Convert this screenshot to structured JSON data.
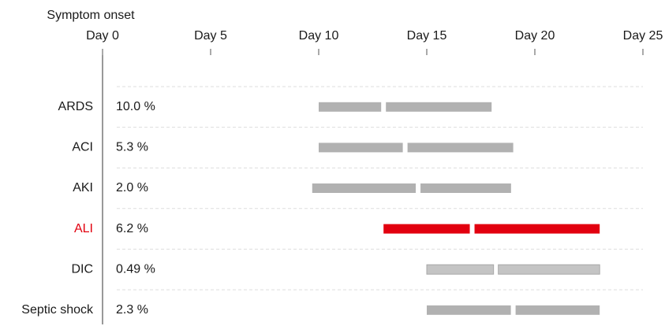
{
  "chart_data": {
    "type": "range",
    "axis_title": "Symptom onset",
    "xlim": [
      0,
      25
    ],
    "xticks": [
      {
        "value": 0,
        "label": "Day 0"
      },
      {
        "value": 5,
        "label": "Day 5"
      },
      {
        "value": 10,
        "label": "Day 10"
      },
      {
        "value": 15,
        "label": "Day 15"
      },
      {
        "value": 20,
        "label": "Day 20"
      },
      {
        "value": 25,
        "label": "Day 25"
      }
    ],
    "grid": true,
    "rows": [
      {
        "label": "ARDS",
        "percent": "10.0 %",
        "low": 10,
        "median": 13,
        "high": 18,
        "color": "#b1b1b1",
        "label_color": "#1a1a1a"
      },
      {
        "label": "ACI",
        "percent": "5.3 %",
        "low": 10,
        "median": 14,
        "high": 19,
        "color": "#b1b1b1",
        "label_color": "#1a1a1a"
      },
      {
        "label": "AKI",
        "percent": "2.0 %",
        "low": 9.7,
        "median": 14.6,
        "high": 18.9,
        "color": "#b1b1b1",
        "label_color": "#1a1a1a"
      },
      {
        "label": "ALI",
        "percent": "6.2 %",
        "low": 13,
        "median": 17.1,
        "high": 23,
        "color": "#e2000f",
        "label_color": "#e2000f"
      },
      {
        "label": "DIC",
        "percent": "0.49 %",
        "low": 15,
        "median": 18.2,
        "high": 23,
        "color": "#c4c4c4",
        "label_color": "#1a1a1a"
      },
      {
        "label": "Septic shock",
        "percent": "2.3 %",
        "low": 15,
        "median": 19,
        "high": 23,
        "color": "#b1b1b1",
        "label_color": "#1a1a1a"
      }
    ]
  }
}
